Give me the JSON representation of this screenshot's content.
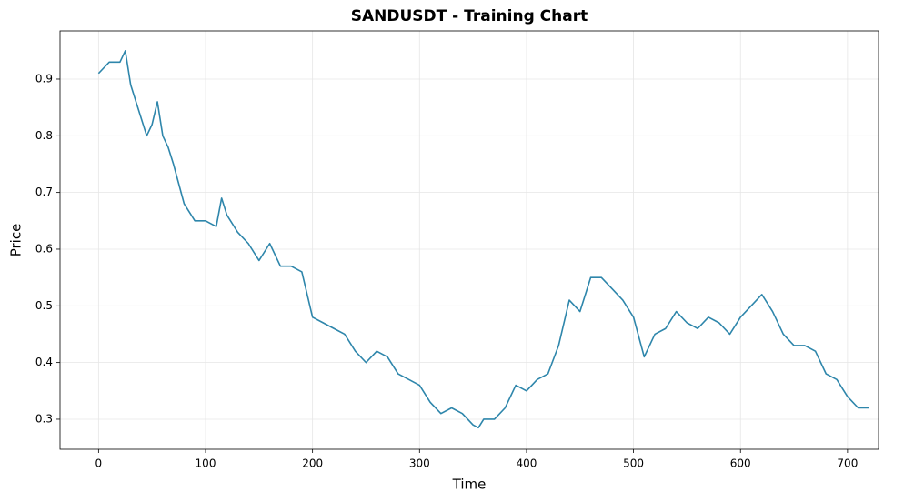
{
  "chart_data": {
    "type": "line",
    "title": "SANDUSDT - Training Chart",
    "x_label": "Time",
    "y_label": "Price",
    "x": [
      0,
      10,
      20,
      25,
      30,
      40,
      45,
      50,
      55,
      60,
      65,
      70,
      80,
      90,
      100,
      110,
      115,
      120,
      130,
      140,
      150,
      160,
      170,
      180,
      190,
      200,
      210,
      220,
      230,
      240,
      250,
      260,
      270,
      280,
      290,
      300,
      310,
      320,
      330,
      340,
      350,
      355,
      360,
      370,
      380,
      390,
      400,
      410,
      420,
      430,
      440,
      450,
      460,
      470,
      480,
      490,
      500,
      510,
      520,
      530,
      540,
      550,
      560,
      570,
      580,
      590,
      600,
      610,
      620,
      630,
      640,
      650,
      660,
      670,
      680,
      690,
      700,
      710,
      720
    ],
    "series": [
      {
        "name": "Price",
        "color": "#2e86ab",
        "values": [
          0.91,
          0.93,
          0.93,
          0.95,
          0.89,
          0.83,
          0.8,
          0.82,
          0.86,
          0.8,
          0.78,
          0.75,
          0.68,
          0.65,
          0.65,
          0.64,
          0.69,
          0.66,
          0.63,
          0.61,
          0.58,
          0.61,
          0.57,
          0.57,
          0.56,
          0.48,
          0.47,
          0.46,
          0.45,
          0.42,
          0.4,
          0.42,
          0.41,
          0.38,
          0.37,
          0.36,
          0.33,
          0.31,
          0.32,
          0.31,
          0.29,
          0.285,
          0.3,
          0.3,
          0.32,
          0.36,
          0.35,
          0.37,
          0.38,
          0.43,
          0.51,
          0.49,
          0.55,
          0.55,
          0.53,
          0.51,
          0.48,
          0.41,
          0.45,
          0.46,
          0.49,
          0.47,
          0.46,
          0.48,
          0.47,
          0.45,
          0.48,
          0.5,
          0.52,
          0.49,
          0.45,
          0.43,
          0.43,
          0.42,
          0.38,
          0.37,
          0.34,
          0.32,
          0.32
        ]
      }
    ],
    "xlim": [
      -36,
      729
    ],
    "ylim": [
      0.247,
      0.985
    ],
    "xticks": [
      0,
      100,
      200,
      300,
      400,
      500,
      600,
      700
    ],
    "yticks": [
      0.3,
      0.4,
      0.5,
      0.6,
      0.7,
      0.8,
      0.9
    ],
    "grid": true
  }
}
